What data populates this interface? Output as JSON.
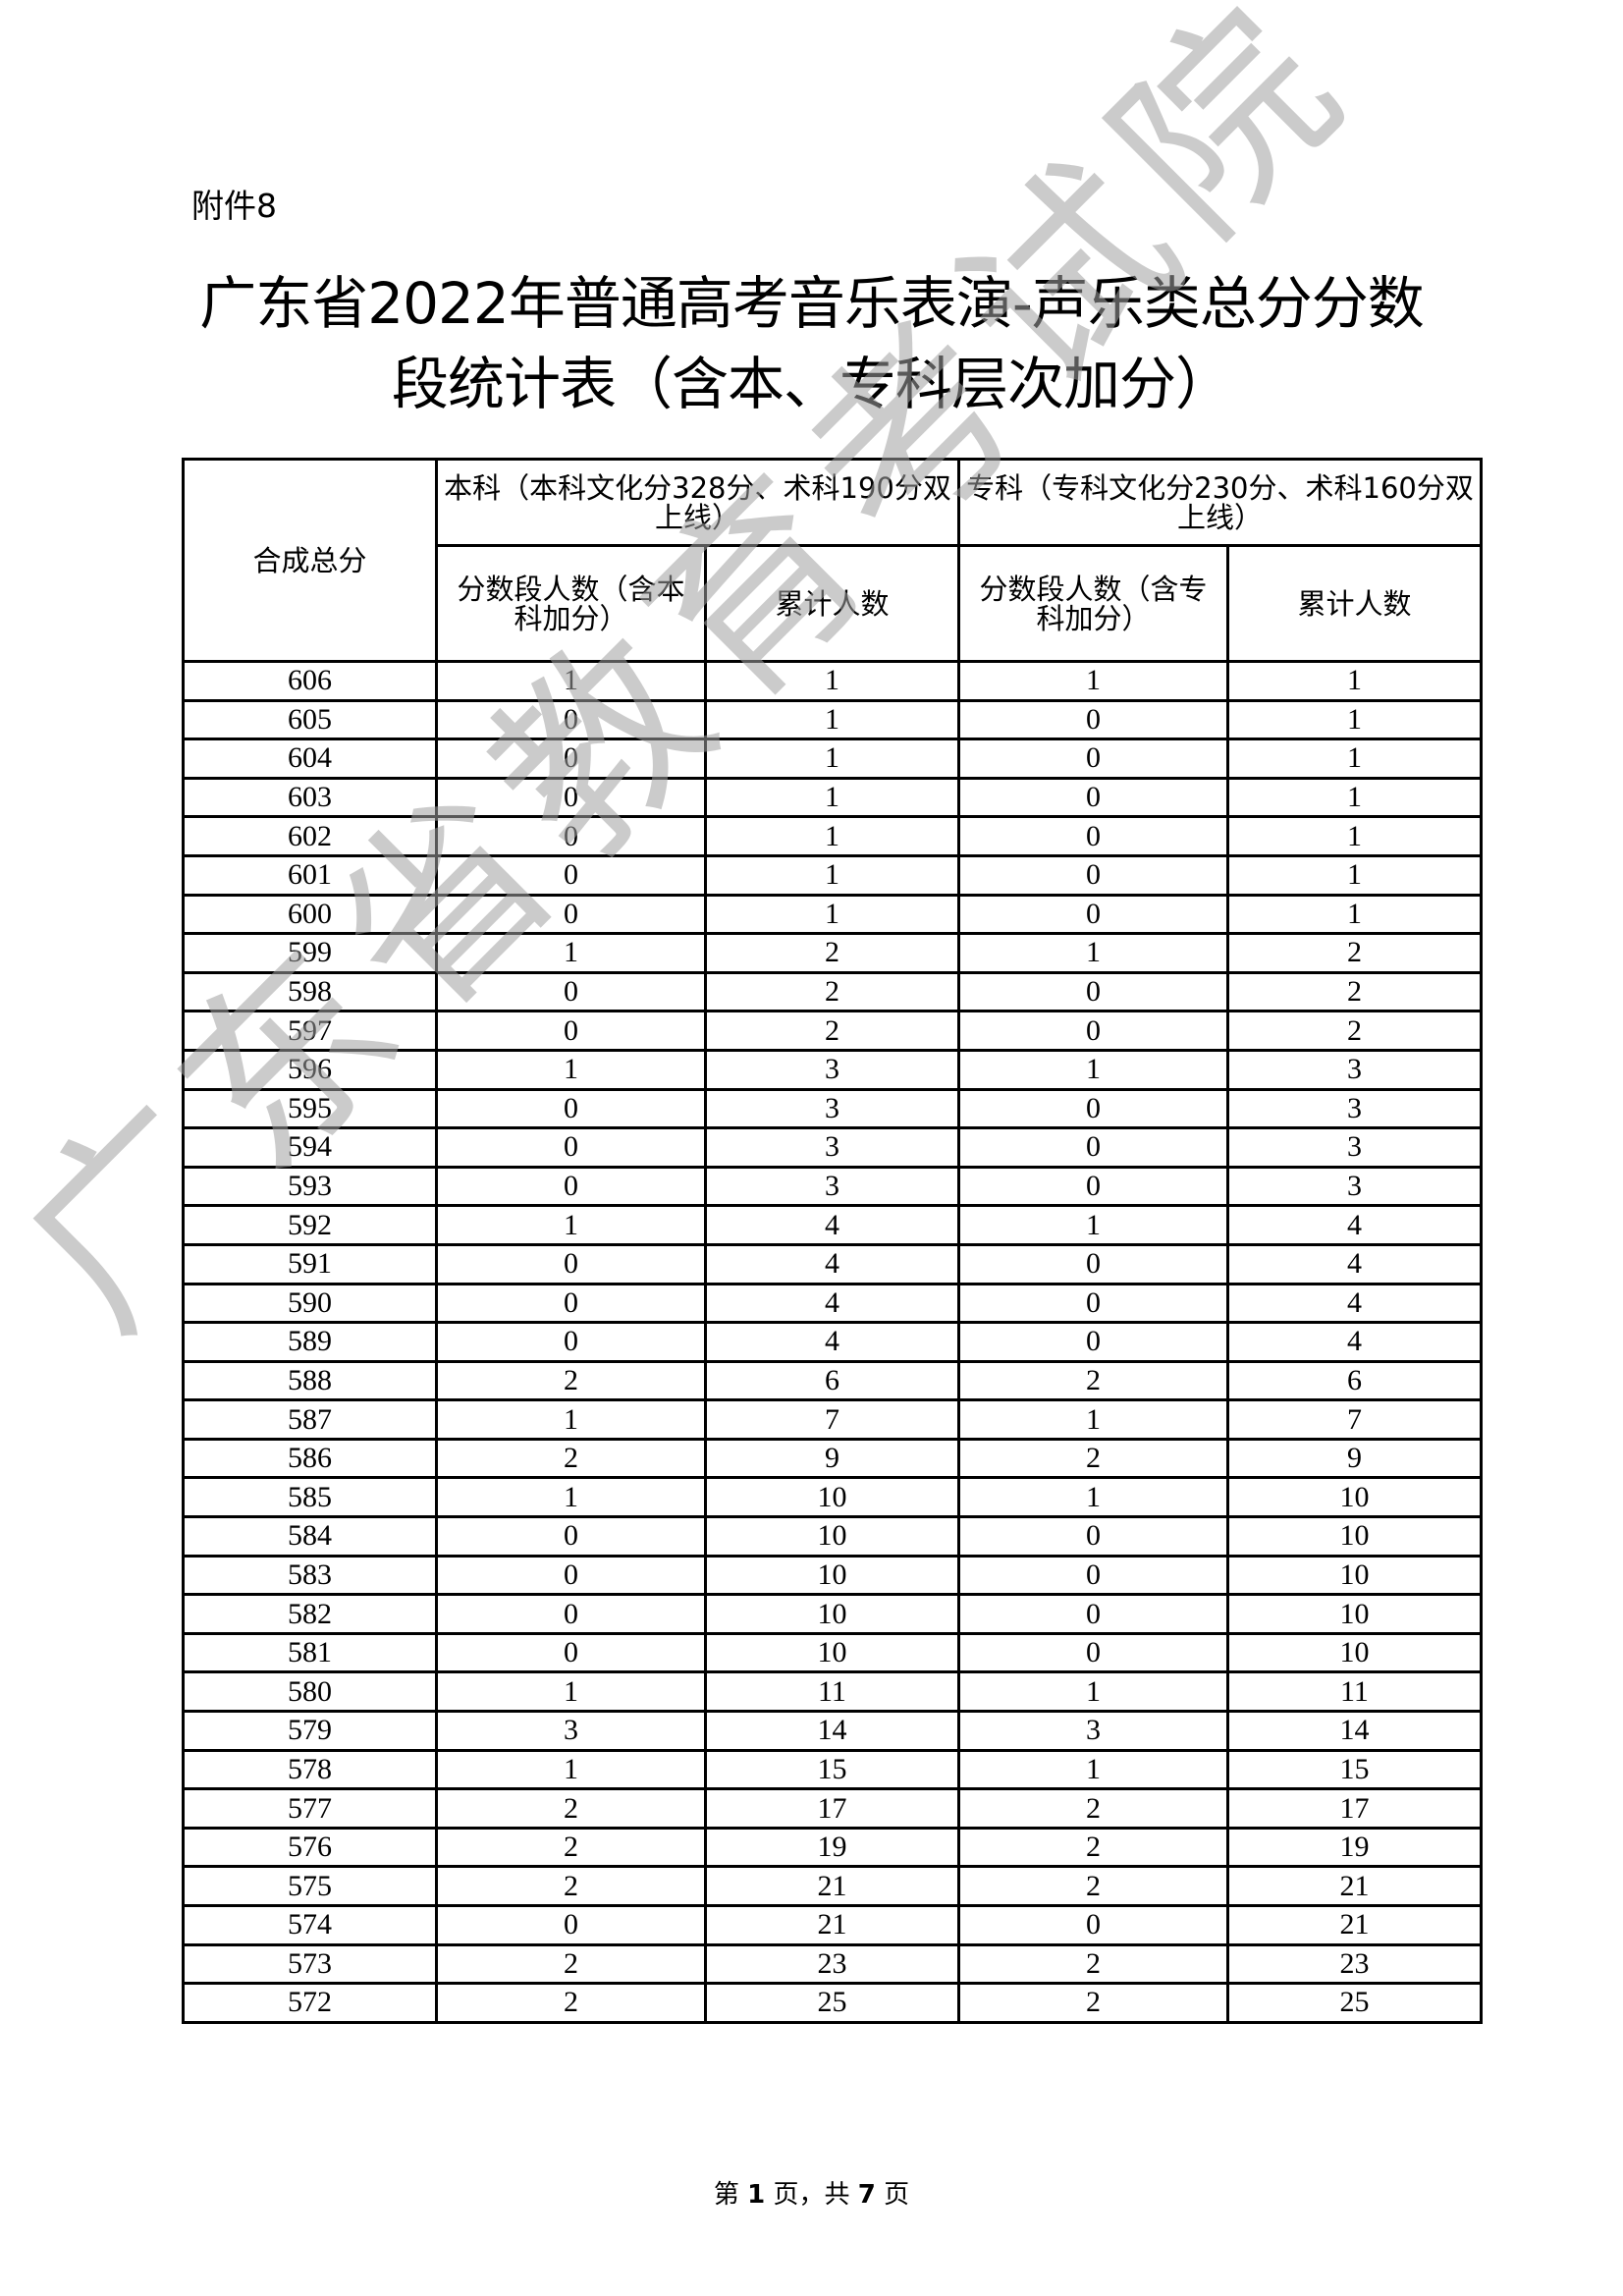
{
  "attachment": "附件8",
  "title_line1": "广东省2022年普通高考音乐表演-声乐类总分分数",
  "title_line2": "段统计表（含本、专科层次加分）",
  "table": {
    "col_score": "合成总分",
    "group_undergrad": "本科（本科文化分328分、术科190分双上线）",
    "group_junior": "专科（专科文化分230分、术科160分双上线）",
    "undergrad_count": "分数段人数（含本科加分）",
    "undergrad_cum": "累计人数",
    "junior_count": "分数段人数（含专科加分）",
    "junior_cum": "累计人数",
    "rows": [
      [
        "606",
        "1",
        "1",
        "1",
        "1"
      ],
      [
        "605",
        "0",
        "1",
        "0",
        "1"
      ],
      [
        "604",
        "0",
        "1",
        "0",
        "1"
      ],
      [
        "603",
        "0",
        "1",
        "0",
        "1"
      ],
      [
        "602",
        "0",
        "1",
        "0",
        "1"
      ],
      [
        "601",
        "0",
        "1",
        "0",
        "1"
      ],
      [
        "600",
        "0",
        "1",
        "0",
        "1"
      ],
      [
        "599",
        "1",
        "2",
        "1",
        "2"
      ],
      [
        "598",
        "0",
        "2",
        "0",
        "2"
      ],
      [
        "597",
        "0",
        "2",
        "0",
        "2"
      ],
      [
        "596",
        "1",
        "3",
        "1",
        "3"
      ],
      [
        "595",
        "0",
        "3",
        "0",
        "3"
      ],
      [
        "594",
        "0",
        "3",
        "0",
        "3"
      ],
      [
        "593",
        "0",
        "3",
        "0",
        "3"
      ],
      [
        "592",
        "1",
        "4",
        "1",
        "4"
      ],
      [
        "591",
        "0",
        "4",
        "0",
        "4"
      ],
      [
        "590",
        "0",
        "4",
        "0",
        "4"
      ],
      [
        "589",
        "0",
        "4",
        "0",
        "4"
      ],
      [
        "588",
        "2",
        "6",
        "2",
        "6"
      ],
      [
        "587",
        "1",
        "7",
        "1",
        "7"
      ],
      [
        "586",
        "2",
        "9",
        "2",
        "9"
      ],
      [
        "585",
        "1",
        "10",
        "1",
        "10"
      ],
      [
        "584",
        "0",
        "10",
        "0",
        "10"
      ],
      [
        "583",
        "0",
        "10",
        "0",
        "10"
      ],
      [
        "582",
        "0",
        "10",
        "0",
        "10"
      ],
      [
        "581",
        "0",
        "10",
        "0",
        "10"
      ],
      [
        "580",
        "1",
        "11",
        "1",
        "11"
      ],
      [
        "579",
        "3",
        "14",
        "3",
        "14"
      ],
      [
        "578",
        "1",
        "15",
        "1",
        "15"
      ],
      [
        "577",
        "2",
        "17",
        "2",
        "17"
      ],
      [
        "576",
        "2",
        "19",
        "2",
        "19"
      ],
      [
        "575",
        "2",
        "21",
        "2",
        "21"
      ],
      [
        "574",
        "0",
        "21",
        "0",
        "21"
      ],
      [
        "573",
        "2",
        "23",
        "2",
        "23"
      ],
      [
        "572",
        "2",
        "25",
        "2",
        "25"
      ]
    ]
  },
  "footer": {
    "prefix": "第 ",
    "page": "1",
    "mid": " 页，共 ",
    "total": "7",
    "suffix": " 页"
  },
  "watermark": "广东省教育考试院"
}
